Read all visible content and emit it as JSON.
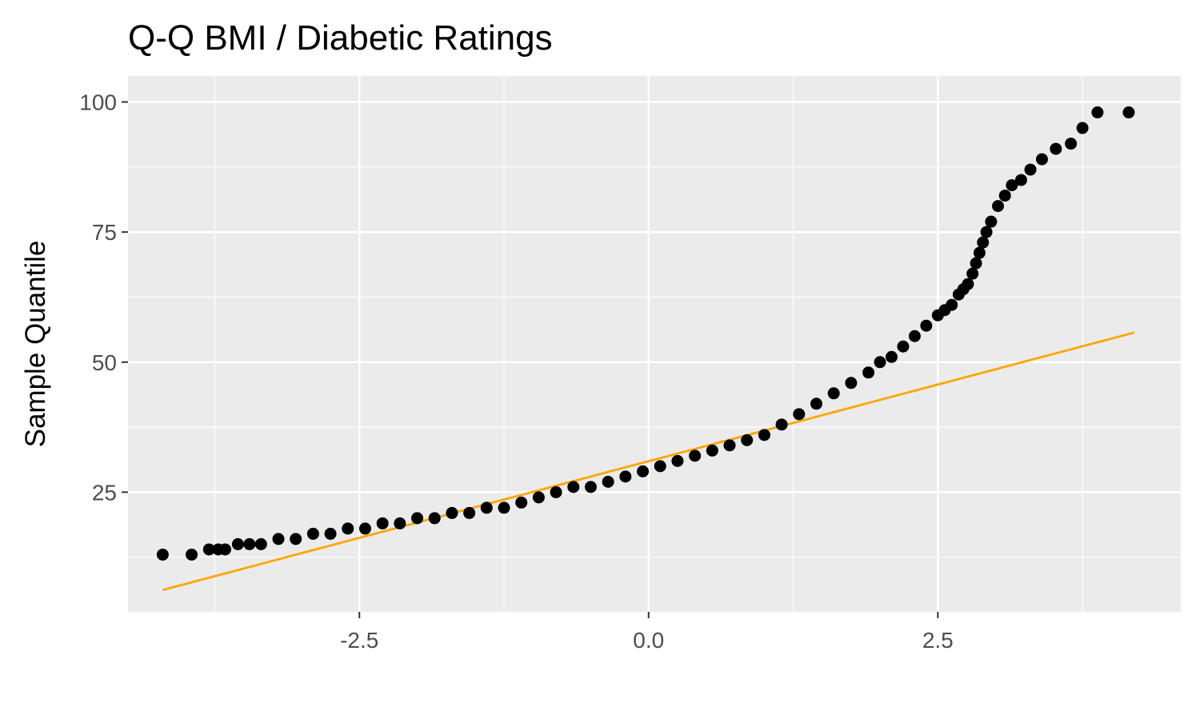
{
  "chart_data": {
    "type": "scatter",
    "title": "Q-Q BMI / Diabetic Ratings",
    "xlabel": "",
    "ylabel": "Sample Quantile",
    "xlim": [
      -4.5,
      4.6
    ],
    "ylim": [
      2,
      105
    ],
    "x_ticks": [
      -2.5,
      0.0,
      2.5
    ],
    "x_tick_labels": [
      "-2.5",
      "0.0",
      "2.5"
    ],
    "y_ticks": [
      25,
      50,
      75,
      100
    ],
    "y_tick_labels": [
      "25",
      "50",
      "75",
      "100"
    ],
    "grid": true,
    "background": "#ebebeb",
    "point_color": "#000000",
    "line_color": "#ffa500",
    "reference_line": {
      "x": [
        -4.2,
        4.2
      ],
      "y": [
        6.2,
        55.7
      ]
    },
    "points": {
      "x": [
        -4.2,
        -3.95,
        -3.8,
        -3.72,
        -3.66,
        -3.55,
        -3.45,
        -3.35,
        -3.2,
        -3.05,
        -2.9,
        -2.75,
        -2.6,
        -2.45,
        -2.3,
        -2.15,
        -2.0,
        -1.85,
        -1.7,
        -1.55,
        -1.4,
        -1.25,
        -1.1,
        -0.95,
        -0.8,
        -0.65,
        -0.5,
        -0.35,
        -0.2,
        -0.05,
        0.1,
        0.25,
        0.4,
        0.55,
        0.7,
        0.85,
        1.0,
        1.15,
        1.3,
        1.45,
        1.6,
        1.75,
        1.9,
        2.0,
        2.1,
        2.2,
        2.3,
        2.4,
        2.5,
        2.56,
        2.62,
        2.68,
        2.72,
        2.76,
        2.8,
        2.83,
        2.86,
        2.89,
        2.92,
        2.96,
        3.02,
        3.08,
        3.14,
        3.22,
        3.3,
        3.4,
        3.52,
        3.65,
        3.75,
        3.88,
        4.15
      ],
      "y": [
        13,
        13,
        14,
        14,
        14,
        15,
        15,
        15,
        16,
        16,
        17,
        17,
        18,
        18,
        19,
        19,
        20,
        20,
        21,
        21,
        22,
        22,
        23,
        24,
        25,
        26,
        26,
        27,
        28,
        29,
        30,
        31,
        32,
        33,
        34,
        35,
        36,
        38,
        40,
        42,
        44,
        46,
        48,
        50,
        51,
        53,
        55,
        57,
        59,
        60,
        61,
        63,
        64,
        65,
        67,
        69,
        71,
        73,
        75,
        77,
        80,
        82,
        84,
        85,
        87,
        89,
        91,
        92,
        95,
        98,
        98
      ]
    }
  }
}
